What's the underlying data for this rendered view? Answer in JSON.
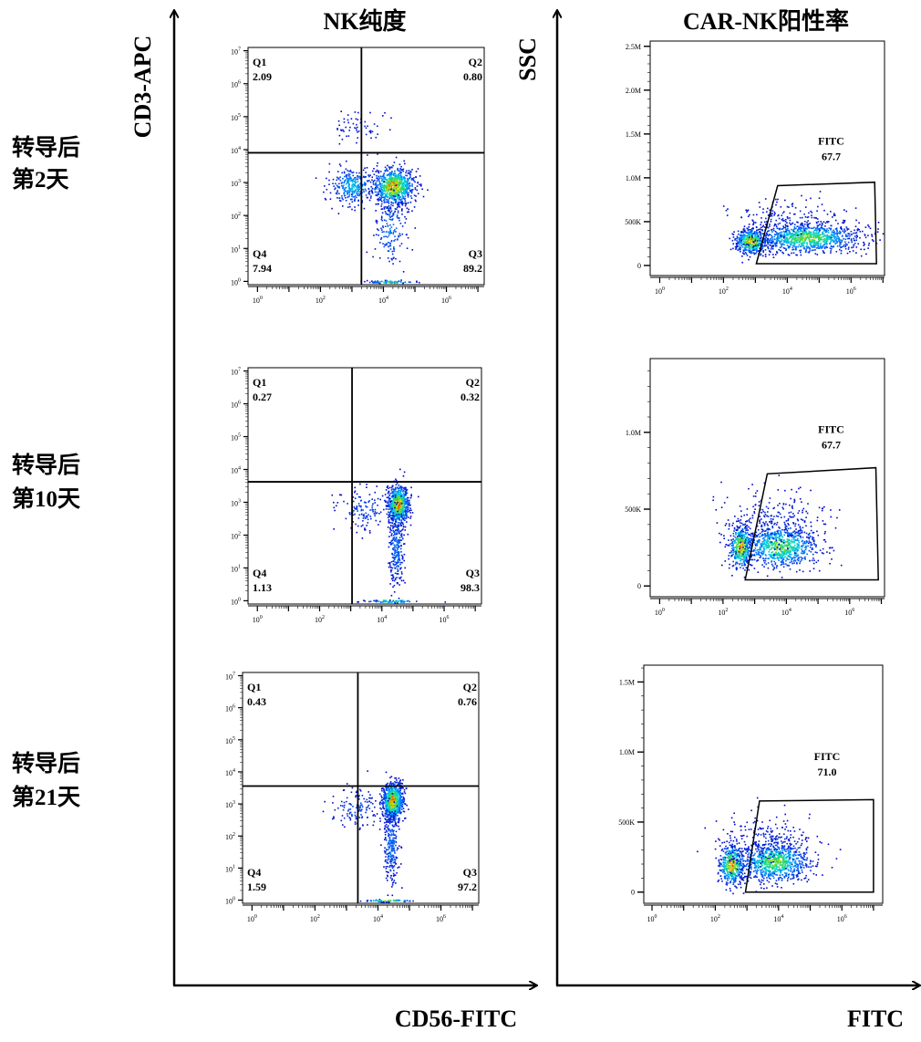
{
  "titles": {
    "left": "NK纯度",
    "right": "CAR-NK阳性率"
  },
  "axes": {
    "left_y": "CD3-APC",
    "left_x": "CD56-FITC",
    "right_y": "SSC",
    "right_x": "FITC"
  },
  "rows": [
    {
      "line1": "转导后",
      "line2": "第2天"
    },
    {
      "line1": "转导后",
      "line2": "第10天"
    },
    {
      "line1": "转导后",
      "line2": "第21天"
    }
  ],
  "colors": {
    "axis": "#000000",
    "density_low": "#0000c8",
    "density_high": "#ff2000"
  },
  "chart_data": [
    {
      "type": "scatter",
      "subtype": "density quadrant plot",
      "x_scale": "log",
      "y_scale": "log",
      "tick_base": "10",
      "x_tick_exponents": [
        "0",
        "2",
        "4",
        "6"
      ],
      "y_tick_exponents": [
        "0",
        "1",
        "2",
        "3",
        "4",
        "5",
        "6",
        "7"
      ],
      "quadrant_threshold": {
        "x": 2000,
        "y": 8000
      },
      "quadrants": [
        {
          "name": "Q1",
          "value": "2.09"
        },
        {
          "name": "Q2",
          "value": "0.80"
        },
        {
          "name": "Q3",
          "value": "89.2"
        },
        {
          "name": "Q4",
          "value": "7.94"
        }
      ]
    },
    {
      "type": "scatter",
      "subtype": "density quadrant plot",
      "x_scale": "log",
      "y_scale": "log",
      "tick_base": "10",
      "x_tick_exponents": [
        "0",
        "2",
        "4",
        "6"
      ],
      "y_tick_exponents": [
        "0",
        "1",
        "2",
        "3",
        "4",
        "5",
        "6",
        "7"
      ],
      "quadrant_threshold": {
        "x": 1100,
        "y": 4200
      },
      "quadrants": [
        {
          "name": "Q1",
          "value": "0.27"
        },
        {
          "name": "Q2",
          "value": "0.32"
        },
        {
          "name": "Q3",
          "value": "98.3"
        },
        {
          "name": "Q4",
          "value": "1.13"
        }
      ]
    },
    {
      "type": "scatter",
      "subtype": "density quadrant plot",
      "x_scale": "log",
      "y_scale": "log",
      "tick_base": "10",
      "x_tick_exponents": [
        "0",
        "2",
        "4",
        "6"
      ],
      "y_tick_exponents": [
        "0",
        "1",
        "2",
        "3",
        "4",
        "5",
        "6",
        "7"
      ],
      "quadrant_threshold": {
        "x": 2300,
        "y": 3600
      },
      "quadrants": [
        {
          "name": "Q1",
          "value": "0.43"
        },
        {
          "name": "Q2",
          "value": "0.76"
        },
        {
          "name": "Q3",
          "value": "97.2"
        },
        {
          "name": "Q4",
          "value": "1.59"
        }
      ]
    },
    {
      "type": "scatter",
      "subtype": "density gate plot",
      "x_scale": "log",
      "y_scale": "linear",
      "tick_base": "10",
      "x_tick_exponents": [
        "0",
        "2",
        "4",
        "6"
      ],
      "y_ticks": [
        {
          "v": 0,
          "label": "0"
        },
        {
          "v": 500000,
          "label": "500K"
        },
        {
          "v": 1000000,
          "label": "1.0M"
        },
        {
          "v": 1500000,
          "label": "1.5M"
        },
        {
          "v": 2000000,
          "label": "2.0M"
        },
        {
          "v": 2500000,
          "label": "2.5M"
        }
      ],
      "gate": {
        "name": "FITC",
        "value": "67.7",
        "vertices": [
          [
            1070,
            20000
          ],
          [
            5000,
            910000
          ],
          [
            5500000,
            950000
          ],
          [
            6300000,
            20000
          ]
        ]
      }
    },
    {
      "type": "scatter",
      "subtype": "density gate plot",
      "x_scale": "log",
      "y_scale": "linear",
      "tick_base": "10",
      "x_tick_exponents": [
        "0",
        "2",
        "4",
        "6"
      ],
      "y_ticks": [
        {
          "v": 0,
          "label": "0"
        },
        {
          "v": 500000,
          "label": "500K"
        },
        {
          "v": 1000000,
          "label": "1.0M"
        }
      ],
      "gate": {
        "name": "FITC",
        "value": "67.7",
        "vertices": [
          [
            500,
            40000
          ],
          [
            2500,
            730000
          ],
          [
            6700000,
            770000
          ],
          [
            8000000,
            40000
          ]
        ]
      }
    },
    {
      "type": "scatter",
      "subtype": "density gate plot",
      "x_scale": "log",
      "y_scale": "linear",
      "tick_base": "10",
      "x_tick_exponents": [
        "0",
        "2",
        "4",
        "6"
      ],
      "y_ticks": [
        {
          "v": 0,
          "label": "0"
        },
        {
          "v": 500000,
          "label": "500K"
        },
        {
          "v": 1000000,
          "label": "1.0M"
        },
        {
          "v": 1500000,
          "label": "1.5M"
        }
      ],
      "gate": {
        "name": "FITC",
        "value": "71.0",
        "vertices": [
          [
            900,
            0
          ],
          [
            2500,
            650000
          ],
          [
            10000000,
            660000
          ],
          [
            10000000,
            0
          ]
        ]
      }
    }
  ]
}
